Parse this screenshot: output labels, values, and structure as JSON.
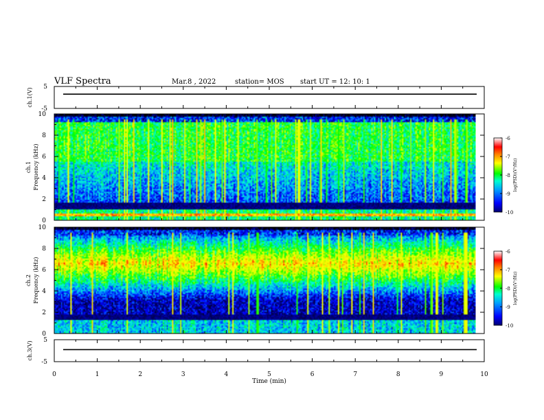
{
  "header": {
    "title": "VLF Spectra",
    "date": "Mar.8  , 2022",
    "station": "station= MOS",
    "start_ut": "start  UT =   12: 10: 1"
  },
  "colors": {
    "spectrum_scale": [
      "#000080",
      "#0000ff",
      "#00aaff",
      "#00ffcc",
      "#00ff00",
      "#ffff00",
      "#ff6600",
      "#ff0000",
      "#ffffff"
    ]
  },
  "chart_data": [
    {
      "type": "line",
      "panel": "ch1-waveform",
      "ylabel": "ch.1(V)",
      "ylim": [
        -5,
        5
      ],
      "yticks": [
        "5",
        "-5"
      ],
      "xlim": [
        0,
        10
      ],
      "series": [
        {
          "values": [
            1.5,
            1.5
          ]
        }
      ]
    },
    {
      "type": "heatmap",
      "panel": "ch1-spectrogram",
      "ylabel_line1": "ch.1",
      "ylabel_line2": "Frequency (kHz)",
      "yticks": [
        "0",
        "2",
        "4",
        "6",
        "8",
        "10"
      ],
      "ylim": [
        0,
        10
      ],
      "xlim": [
        0,
        9.8
      ],
      "colorbar": {
        "label": "log(PSD)(V²/Hz)",
        "ticks": [
          "-6",
          "-7",
          "-8",
          "-9",
          "-10"
        ],
        "range": [
          -10,
          -6
        ]
      }
    },
    {
      "type": "heatmap",
      "panel": "ch2-spectrogram",
      "ylabel_line1": "ch.2",
      "ylabel_line2": "Frequency (kHz)",
      "yticks": [
        "0",
        "2",
        "4",
        "6",
        "8",
        "10"
      ],
      "ylim": [
        0,
        10
      ],
      "xlim": [
        0,
        9.8
      ],
      "colorbar": {
        "label": "log(PSD)(V²/Hz)",
        "ticks": [
          "-6",
          "-7",
          "-8",
          "-9",
          "-10"
        ],
        "range": [
          -10,
          -6
        ]
      }
    },
    {
      "type": "line",
      "panel": "ch3-waveform",
      "ylabel": "ch.3(V)",
      "ylim": [
        -5,
        5
      ],
      "yticks": [
        "5",
        "-5"
      ],
      "xlim": [
        0,
        10
      ],
      "series": [
        {
          "values": [
            0.5,
            0.5
          ]
        }
      ]
    }
  ],
  "x_axis": {
    "label": "Time  (min)",
    "ticks": [
      "0",
      "1",
      "2",
      "3",
      "4",
      "5",
      "6",
      "7",
      "8",
      "9",
      "10"
    ]
  }
}
